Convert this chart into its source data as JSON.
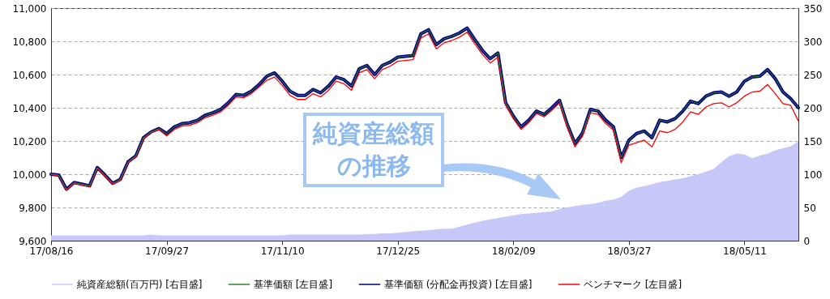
{
  "chart_data": {
    "type": "line",
    "categories": [
      "17/08/16",
      null,
      null,
      null,
      null,
      null,
      null,
      null,
      null,
      null,
      null,
      null,
      null,
      null,
      null,
      "17/09/27",
      null,
      null,
      null,
      null,
      null,
      null,
      null,
      null,
      null,
      null,
      null,
      null,
      null,
      null,
      "17/11/10",
      null,
      null,
      null,
      null,
      null,
      null,
      null,
      null,
      null,
      null,
      null,
      null,
      null,
      null,
      "17/12/25",
      null,
      null,
      null,
      null,
      null,
      null,
      null,
      null,
      null,
      null,
      null,
      null,
      null,
      null,
      "18/02/09",
      null,
      null,
      null,
      null,
      null,
      null,
      null,
      null,
      null,
      null,
      null,
      null,
      null,
      null,
      "18/03/27",
      null,
      null,
      null,
      null,
      null,
      null,
      null,
      null,
      null,
      null,
      null,
      null,
      null,
      null,
      "18/05/11",
      null,
      null,
      null,
      null,
      null,
      null,
      null
    ],
    "series": [
      {
        "name": "純資産総額(百万円) [右目盛]",
        "type": "area",
        "axis": "y2",
        "color": "#c8c8f8",
        "values": [
          8,
          8,
          8,
          8,
          8,
          8,
          8,
          8,
          8,
          8,
          8,
          8,
          8,
          9,
          8,
          8,
          8,
          8,
          8,
          8,
          8,
          8,
          8,
          8,
          8,
          8,
          8,
          8,
          8,
          8,
          8,
          9,
          9,
          9,
          9,
          9,
          9,
          9,
          9,
          9,
          9,
          10,
          10,
          11,
          11,
          12,
          13,
          14,
          15,
          16,
          17,
          18,
          18,
          21,
          24,
          27,
          30,
          32,
          34,
          36,
          38,
          40,
          41,
          42,
          43,
          44,
          48,
          50,
          52,
          54,
          55,
          57,
          60,
          62,
          66,
          75,
          80,
          82,
          85,
          88,
          90,
          92,
          94,
          97,
          100,
          104,
          108,
          118,
          127,
          131,
          130,
          124,
          128,
          131,
          136,
          139,
          142,
          149
        ]
      },
      {
        "name": "基準価額 [左目盛]",
        "color": "#2e8b2e",
        "values": [
          10000,
          9995,
          9910,
          9950,
          9940,
          9930,
          10040,
          9995,
          9945,
          9970,
          10075,
          10110,
          10220,
          10255,
          10275,
          10245,
          10285,
          10305,
          10310,
          10325,
          10355,
          10370,
          10390,
          10430,
          10480,
          10475,
          10500,
          10540,
          10590,
          10610,
          10560,
          10500,
          10475,
          10475,
          10510,
          10490,
          10530,
          10585,
          10570,
          10530,
          10635,
          10655,
          10600,
          10655,
          10675,
          10705,
          10710,
          10715,
          10845,
          10870,
          10780,
          10815,
          10830,
          10850,
          10880,
          10810,
          10745,
          10695,
          10730,
          10430,
          10350,
          10285,
          10325,
          10380,
          10360,
          10400,
          10445,
          10300,
          10185,
          10250,
          10390,
          10380,
          10325,
          10285,
          10100,
          10205,
          10245,
          10260,
          10220,
          10325,
          10315,
          10335,
          10380,
          10440,
          10425,
          10470,
          10490,
          10495,
          10470,
          10495,
          10560,
          10585,
          10590,
          10630,
          10575,
          10495,
          10455,
          10400
        ]
      },
      {
        "name": "基準価額 (分配金再投資) [左目盛]",
        "color": "#000080",
        "values": [
          10000,
          9995,
          9910,
          9950,
          9940,
          9930,
          10040,
          9995,
          9945,
          9970,
          10075,
          10110,
          10220,
          10255,
          10275,
          10245,
          10285,
          10305,
          10310,
          10325,
          10355,
          10370,
          10390,
          10430,
          10480,
          10475,
          10500,
          10540,
          10590,
          10610,
          10560,
          10500,
          10475,
          10475,
          10510,
          10490,
          10530,
          10585,
          10570,
          10530,
          10635,
          10655,
          10600,
          10655,
          10675,
          10705,
          10710,
          10715,
          10845,
          10870,
          10780,
          10815,
          10830,
          10850,
          10880,
          10810,
          10745,
          10695,
          10730,
          10430,
          10350,
          10285,
          10325,
          10380,
          10360,
          10400,
          10445,
          10300,
          10185,
          10250,
          10390,
          10380,
          10325,
          10285,
          10100,
          10205,
          10245,
          10260,
          10220,
          10325,
          10315,
          10335,
          10380,
          10440,
          10425,
          10470,
          10490,
          10495,
          10470,
          10495,
          10560,
          10585,
          10590,
          10630,
          10575,
          10495,
          10455,
          10400
        ]
      },
      {
        "name": "ベンチマーク [左目盛]",
        "color": "#ff0000",
        "values": [
          10000,
          9990,
          9905,
          9945,
          9935,
          9925,
          10035,
          9990,
          9940,
          9965,
          10070,
          10105,
          10215,
          10250,
          10270,
          10230,
          10270,
          10290,
          10295,
          10310,
          10340,
          10355,
          10375,
          10415,
          10465,
          10460,
          10485,
          10525,
          10565,
          10585,
          10535,
          10475,
          10450,
          10450,
          10485,
          10465,
          10505,
          10560,
          10545,
          10505,
          10610,
          10630,
          10575,
          10630,
          10650,
          10680,
          10685,
          10690,
          10820,
          10845,
          10755,
          10790,
          10805,
          10825,
          10855,
          10785,
          10720,
          10670,
          10705,
          10415,
          10335,
          10270,
          10310,
          10365,
          10345,
          10385,
          10430,
          10280,
          10165,
          10230,
          10370,
          10360,
          10305,
          10265,
          10070,
          10175,
          10190,
          10205,
          10165,
          10260,
          10250,
          10270,
          10315,
          10375,
          10360,
          10405,
          10425,
          10430,
          10405,
          10430,
          10470,
          10495,
          10500,
          10540,
          10485,
          10425,
          10415,
          10320
        ]
      }
    ],
    "ylim": [
      9600,
      11000
    ],
    "yticks": [
      {
        "value": 9600,
        "label": "9,600"
      },
      {
        "value": 9800,
        "label": "9,800"
      },
      {
        "value": 10000,
        "label": "10,000"
      },
      {
        "value": 10200,
        "label": "10,200"
      },
      {
        "value": 10400,
        "label": "10,400"
      },
      {
        "value": 10600,
        "label": "10,600"
      },
      {
        "value": 10800,
        "label": "10,800"
      },
      {
        "value": 11000,
        "label": "11,000"
      }
    ],
    "y2lim": [
      0,
      350
    ],
    "y2ticks": [
      0,
      50,
      100,
      150,
      200,
      250,
      300,
      350
    ],
    "grid": "y",
    "legend": "bottom",
    "annotations": [
      "純資産総額の推移"
    ]
  }
}
